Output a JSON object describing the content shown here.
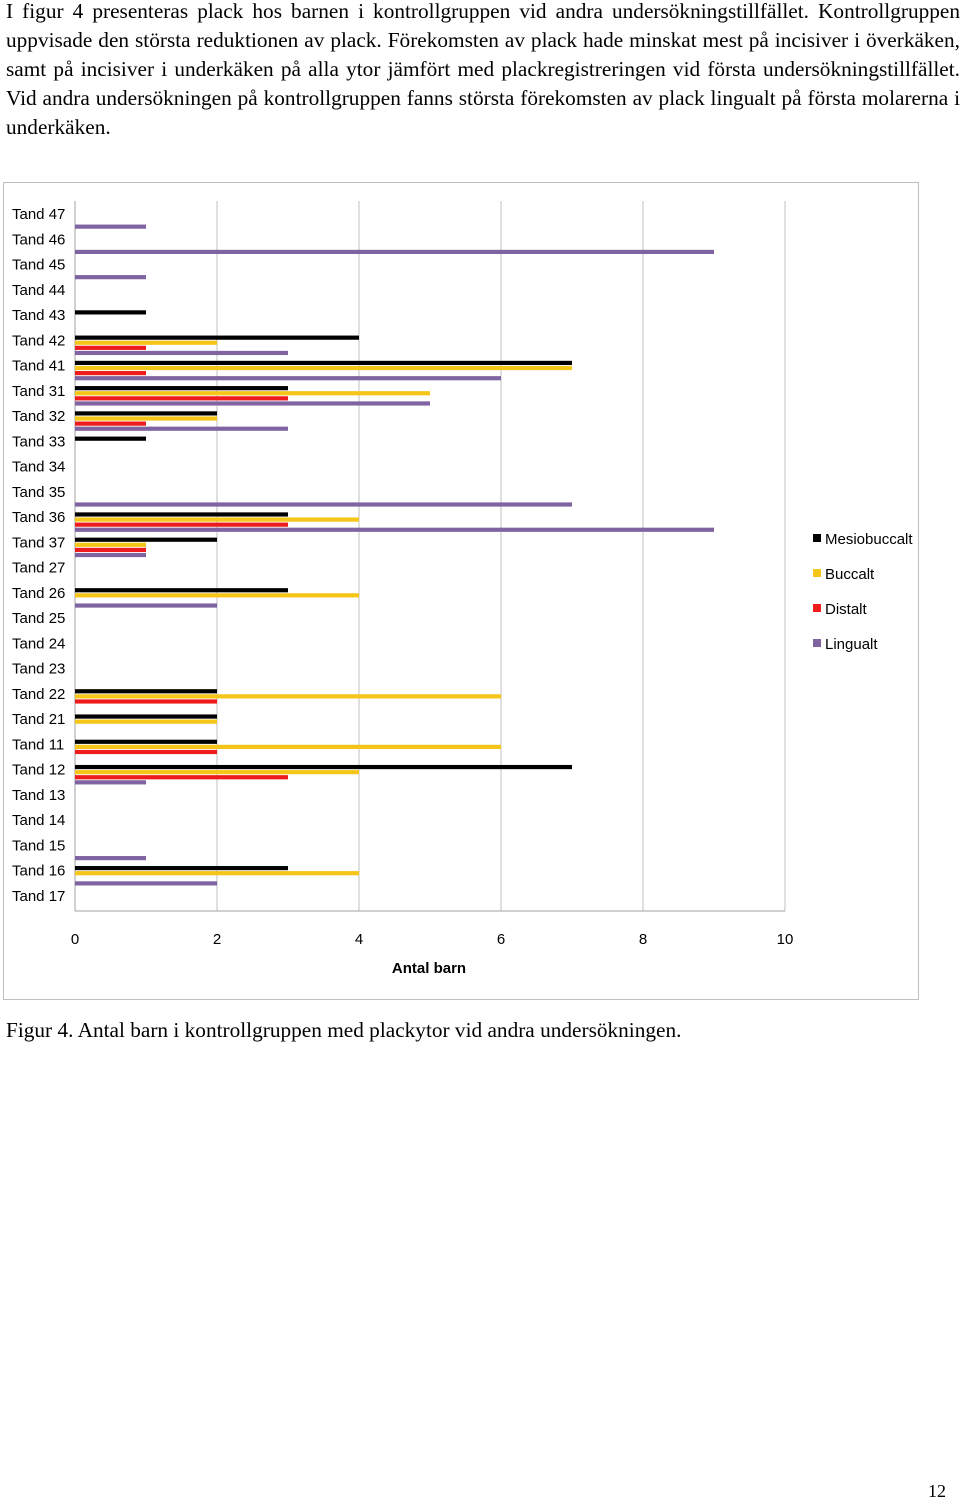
{
  "paragraph": "I figur 4 presenteras plack hos barnen i kontrollgruppen vid andra undersökningstillfället. Kontrollgruppen uppvisade den största reduktionen av plack. Förekomsten av plack hade minskat mest på incisiver i överkäken, samt på incisiver i underkäken på alla ytor jämfört med plackregistreringen vid första undersökningstillfället. Vid andra undersökningen på kontrollgruppen fanns största förekomsten av plack lingualt på första molarerna i underkäken.",
  "caption": "Figur 4. Antal barn i kontrollgruppen med plackytor vid andra undersökningen.",
  "page_number": "12",
  "chart_data": {
    "type": "bar",
    "orientation": "horizontal",
    "xlabel": "Antal barn",
    "ylabel": "",
    "xlim": [
      0,
      10
    ],
    "xticks": [
      0,
      2,
      4,
      6,
      8,
      10
    ],
    "grid": "vertical",
    "legend_position": "right",
    "categories": [
      "Tand 47",
      "Tand 46",
      "Tand 45",
      "Tand 44",
      "Tand 43",
      "Tand 42",
      "Tand 41",
      "Tand 31",
      "Tand 32",
      "Tand 33",
      "Tand 34",
      "Tand 35",
      "Tand 36",
      "Tand 37",
      "Tand 27",
      "Tand 26",
      "Tand 25",
      "Tand 24",
      "Tand 23",
      "Tand 22",
      "Tand 21",
      "Tand 11",
      "Tand 12",
      "Tand 13",
      "Tand 14",
      "Tand 15",
      "Tand 16",
      "Tand 17"
    ],
    "series": [
      {
        "name": "Mesiobuccalt",
        "color": "#000000",
        "values": [
          0,
          0,
          0,
          0,
          1,
          4,
          7,
          3,
          2,
          1,
          0,
          0,
          3,
          2,
          0,
          3,
          0,
          0,
          0,
          2,
          2,
          2,
          7,
          0,
          0,
          0,
          3,
          0
        ]
      },
      {
        "name": "Buccalt",
        "color": "#f5c518",
        "values": [
          0,
          0,
          0,
          0,
          0,
          2,
          7,
          5,
          2,
          0,
          0,
          0,
          4,
          1,
          0,
          4,
          0,
          0,
          0,
          6,
          2,
          6,
          4,
          0,
          0,
          0,
          4,
          0
        ]
      },
      {
        "name": "Distalt",
        "color": "#ee1c1c",
        "values": [
          0,
          0,
          0,
          0,
          0,
          1,
          1,
          3,
          1,
          0,
          0,
          0,
          3,
          1,
          0,
          0,
          0,
          0,
          0,
          2,
          0,
          2,
          3,
          0,
          0,
          0,
          0,
          0
        ]
      },
      {
        "name": "Lingualt",
        "color": "#8064a2",
        "values": [
          1,
          9,
          1,
          0,
          0,
          3,
          6,
          5,
          3,
          0,
          0,
          7,
          9,
          1,
          0,
          2,
          0,
          0,
          0,
          0,
          0,
          0,
          1,
          0,
          0,
          1,
          2,
          0
        ]
      }
    ]
  }
}
